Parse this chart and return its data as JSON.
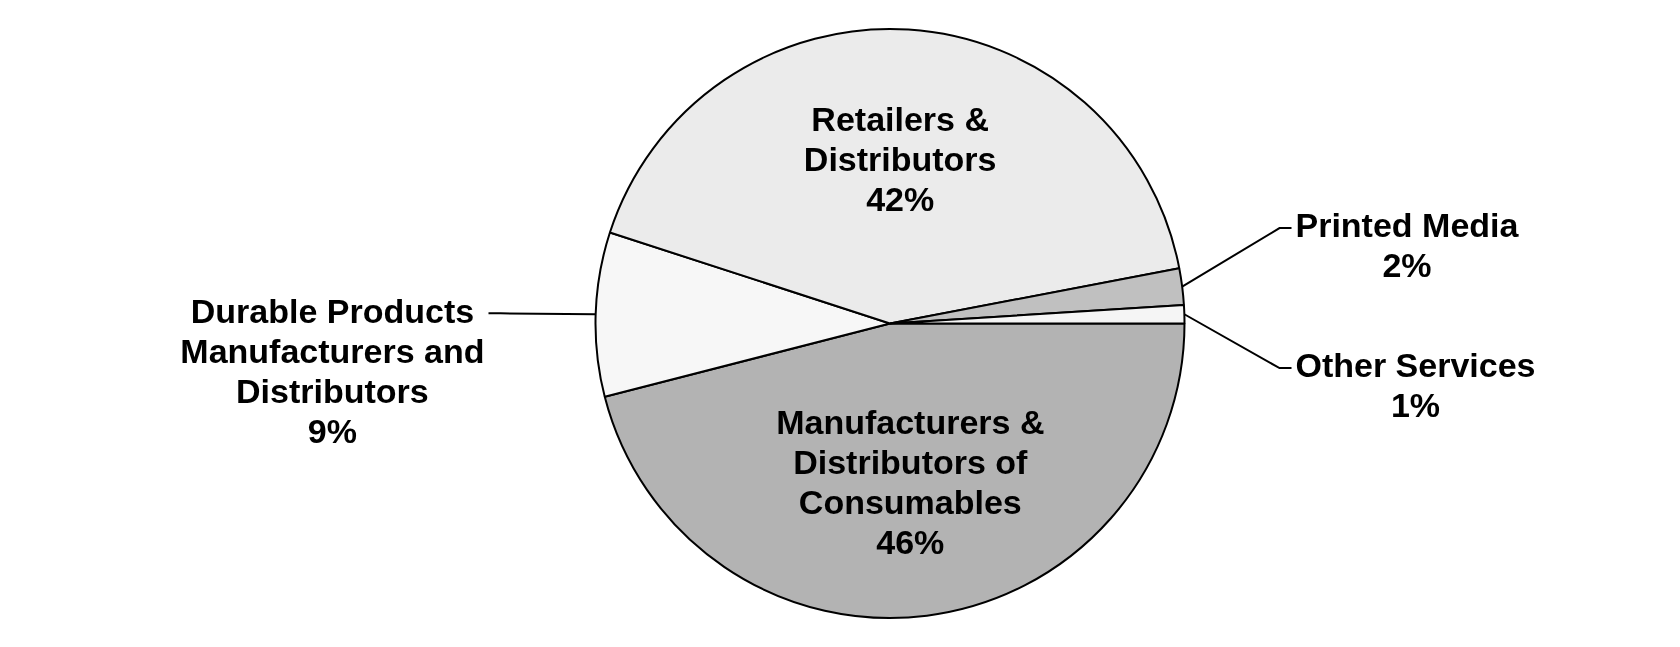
{
  "chart_data": {
    "type": "pie",
    "categories": [
      "Manufacturers & Distributors of Consumables",
      "Durable Products Manufacturers and Distributors",
      "Retailers & Distributors",
      "Printed Media",
      "Other Services"
    ],
    "values": [
      46,
      9,
      42,
      2,
      1
    ],
    "value_labels": [
      "46%",
      "9%",
      "42%",
      "2%",
      "1%"
    ],
    "colors": [
      "#b3b3b3",
      "#f7f7f7",
      "#ebebeb",
      "#c0c0c0",
      "#f5f5f5"
    ],
    "legend": false
  }
}
